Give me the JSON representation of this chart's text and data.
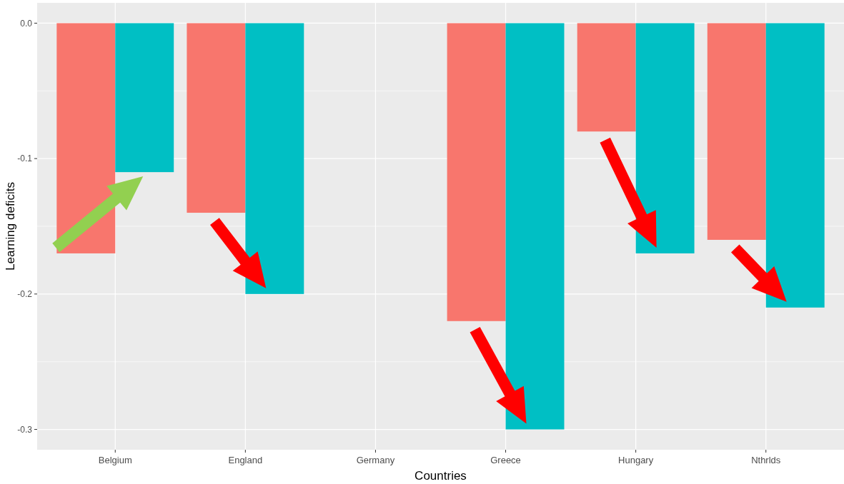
{
  "chart_data": {
    "type": "bar",
    "xlabel": "Countries",
    "ylabel": "Learning deficits",
    "categories": [
      "Belgium",
      "England",
      "Germany",
      "Greece",
      "Hungary",
      "Nthrlds"
    ],
    "series": [
      {
        "color": "#f8766d",
        "values": [
          -0.17,
          -0.14,
          null,
          -0.22,
          -0.08,
          -0.16
        ]
      },
      {
        "color": "#00bfc4",
        "values": [
          -0.11,
          -0.2,
          null,
          -0.3,
          -0.17,
          -0.21
        ]
      }
    ],
    "ylim": [
      -0.315,
      0.015
    ],
    "yticks": [
      {
        "value": 0,
        "label": "0.0"
      },
      {
        "value": -0.1,
        "label": "-0.1"
      },
      {
        "value": -0.2,
        "label": "-0.2"
      },
      {
        "value": -0.3,
        "label": "-0.3"
      }
    ],
    "grid": true
  }
}
